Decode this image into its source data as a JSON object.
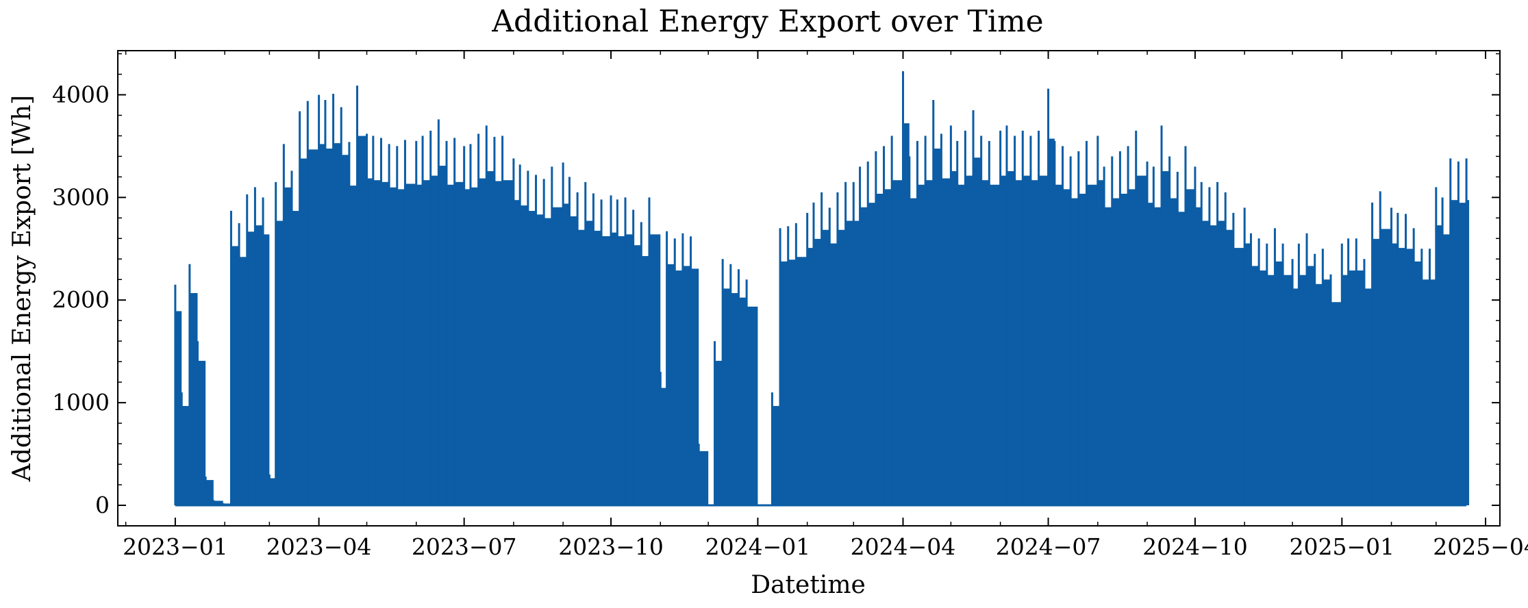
{
  "chart_data": {
    "type": "line",
    "title": "Additional Energy Export over Time",
    "xlabel": "Datetime",
    "ylabel": "Additional Energy Export [Wh]",
    "xlim": [
      "2022-11-26",
      "2025-04-10"
    ],
    "ylim": [
      -200,
      4430
    ],
    "x_ticks": [
      "2023-01-01",
      "2023-04-01",
      "2023-07-01",
      "2023-10-01",
      "2024-01-01",
      "2024-04-01",
      "2024-07-01",
      "2024-10-01",
      "2025-01-01",
      "2025-04-01"
    ],
    "x_tick_labels": [
      "2023−01",
      "2023−04",
      "2023−07",
      "2023−10",
      "2024−01",
      "2024−04",
      "2024−07",
      "2024−10",
      "2025−01",
      "2025−04"
    ],
    "y_ticks": [
      0,
      1000,
      2000,
      3000,
      4000
    ],
    "y_tick_labels": [
      "0",
      "1000",
      "2000",
      "3000",
      "4000"
    ],
    "grid": false,
    "legend": "none",
    "line_color": "#0c5da5",
    "series": [
      {
        "x": [
          "2023-01-01",
          "2023-01-05",
          "2023-01-10",
          "2023-01-15",
          "2023-01-20",
          "2023-01-25",
          "2023-01-31",
          "2023-02-05",
          "2023-02-10",
          "2023-02-15",
          "2023-02-20",
          "2023-02-25",
          "2023-03-01",
          "2023-03-05",
          "2023-03-10",
          "2023-03-15",
          "2023-03-20",
          "2023-03-25",
          "2023-04-01",
          "2023-04-05",
          "2023-04-10",
          "2023-04-15",
          "2023-04-20",
          "2023-04-25",
          "2023-05-01",
          "2023-05-05",
          "2023-05-10",
          "2023-05-15",
          "2023-05-20",
          "2023-05-25",
          "2023-06-01",
          "2023-06-05",
          "2023-06-10",
          "2023-06-15",
          "2023-06-20",
          "2023-06-25",
          "2023-07-01",
          "2023-07-05",
          "2023-07-10",
          "2023-07-15",
          "2023-07-20",
          "2023-07-25",
          "2023-08-01",
          "2023-08-05",
          "2023-08-10",
          "2023-08-15",
          "2023-08-20",
          "2023-08-25",
          "2023-09-01",
          "2023-09-05",
          "2023-09-10",
          "2023-09-15",
          "2023-09-20",
          "2023-09-25",
          "2023-10-01",
          "2023-10-05",
          "2023-10-10",
          "2023-10-15",
          "2023-10-20",
          "2023-10-25",
          "2023-11-01",
          "2023-11-05",
          "2023-11-10",
          "2023-11-15",
          "2023-11-20",
          "2023-11-25",
          "2023-12-01",
          "2023-12-05",
          "2023-12-10",
          "2023-12-15",
          "2023-12-20",
          "2023-12-25",
          "2024-01-01",
          "2024-01-05",
          "2024-01-10",
          "2024-01-15",
          "2024-01-20",
          "2024-01-25",
          "2024-02-01",
          "2024-02-05",
          "2024-02-10",
          "2024-02-15",
          "2024-02-20",
          "2024-02-25",
          "2024-03-01",
          "2024-03-05",
          "2024-03-10",
          "2024-03-15",
          "2024-03-20",
          "2024-03-25",
          "2024-04-01",
          "2024-04-05",
          "2024-04-10",
          "2024-04-15",
          "2024-04-20",
          "2024-04-25",
          "2024-05-01",
          "2024-05-05",
          "2024-05-10",
          "2024-05-15",
          "2024-05-20",
          "2024-05-25",
          "2024-06-01",
          "2024-06-05",
          "2024-06-10",
          "2024-06-15",
          "2024-06-20",
          "2024-06-25",
          "2024-07-01",
          "2024-07-05",
          "2024-07-10",
          "2024-07-15",
          "2024-07-20",
          "2024-07-25",
          "2024-08-01",
          "2024-08-05",
          "2024-08-10",
          "2024-08-15",
          "2024-08-20",
          "2024-08-25",
          "2024-09-01",
          "2024-09-05",
          "2024-09-10",
          "2024-09-15",
          "2024-09-20",
          "2024-09-25",
          "2024-10-01",
          "2024-10-05",
          "2024-10-10",
          "2024-10-15",
          "2024-10-20",
          "2024-10-25",
          "2024-11-01",
          "2024-11-05",
          "2024-11-10",
          "2024-11-15",
          "2024-11-20",
          "2024-11-25",
          "2024-12-01",
          "2024-12-05",
          "2024-12-10",
          "2024-12-15",
          "2024-12-20",
          "2024-12-25",
          "2025-01-01",
          "2025-01-05",
          "2025-01-10",
          "2025-01-15",
          "2025-01-20",
          "2025-01-25",
          "2025-02-01",
          "2025-02-05",
          "2025-02-10",
          "2025-02-15",
          "2025-02-20",
          "2025-02-25",
          "2025-03-01",
          "2025-03-05",
          "2025-03-10",
          "2025-03-15",
          "2025-03-20"
        ],
        "values": [
          2150,
          1100,
          2350,
          1600,
          280,
          50,
          20,
          2870,
          2750,
          3030,
          3100,
          3000,
          300,
          3150,
          3520,
          3260,
          3840,
          3940,
          4000,
          3950,
          4010,
          3880,
          3540,
          4090,
          3620,
          3600,
          3580,
          3520,
          3500,
          3560,
          3550,
          3600,
          3650,
          3760,
          3550,
          3580,
          3500,
          3520,
          3620,
          3700,
          3590,
          3600,
          3380,
          3320,
          3260,
          3220,
          3180,
          3300,
          3340,
          3200,
          3050,
          3150,
          3040,
          2980,
          3020,
          2980,
          3000,
          2880,
          2760,
          3000,
          1300,
          2670,
          2600,
          2650,
          2620,
          600,
          0,
          1600,
          2400,
          2350,
          2300,
          2200,
          0,
          0,
          1100,
          2700,
          2720,
          2750,
          2850,
          2950,
          3050,
          2900,
          3050,
          3150,
          3150,
          3300,
          3350,
          3450,
          3500,
          3600,
          4230,
          3400,
          3550,
          3600,
          3950,
          3620,
          3700,
          3550,
          3650,
          3850,
          3600,
          3550,
          3650,
          3700,
          3600,
          3650,
          3600,
          3650,
          4060,
          3550,
          3500,
          3400,
          3450,
          3550,
          3600,
          3300,
          3400,
          3450,
          3500,
          3650,
          3350,
          3300,
          3700,
          3400,
          3250,
          3500,
          3300,
          3150,
          3100,
          3150,
          3050,
          2850,
          2900,
          2650,
          2600,
          2550,
          2700,
          2550,
          2400,
          2550,
          2650,
          2450,
          2500,
          2250,
          2550,
          2600,
          2600,
          2400,
          2950,
          3060,
          2900,
          2850,
          2840,
          2700,
          2500,
          2500,
          3100,
          3000,
          3380,
          3350,
          3380
        ]
      }
    ]
  }
}
